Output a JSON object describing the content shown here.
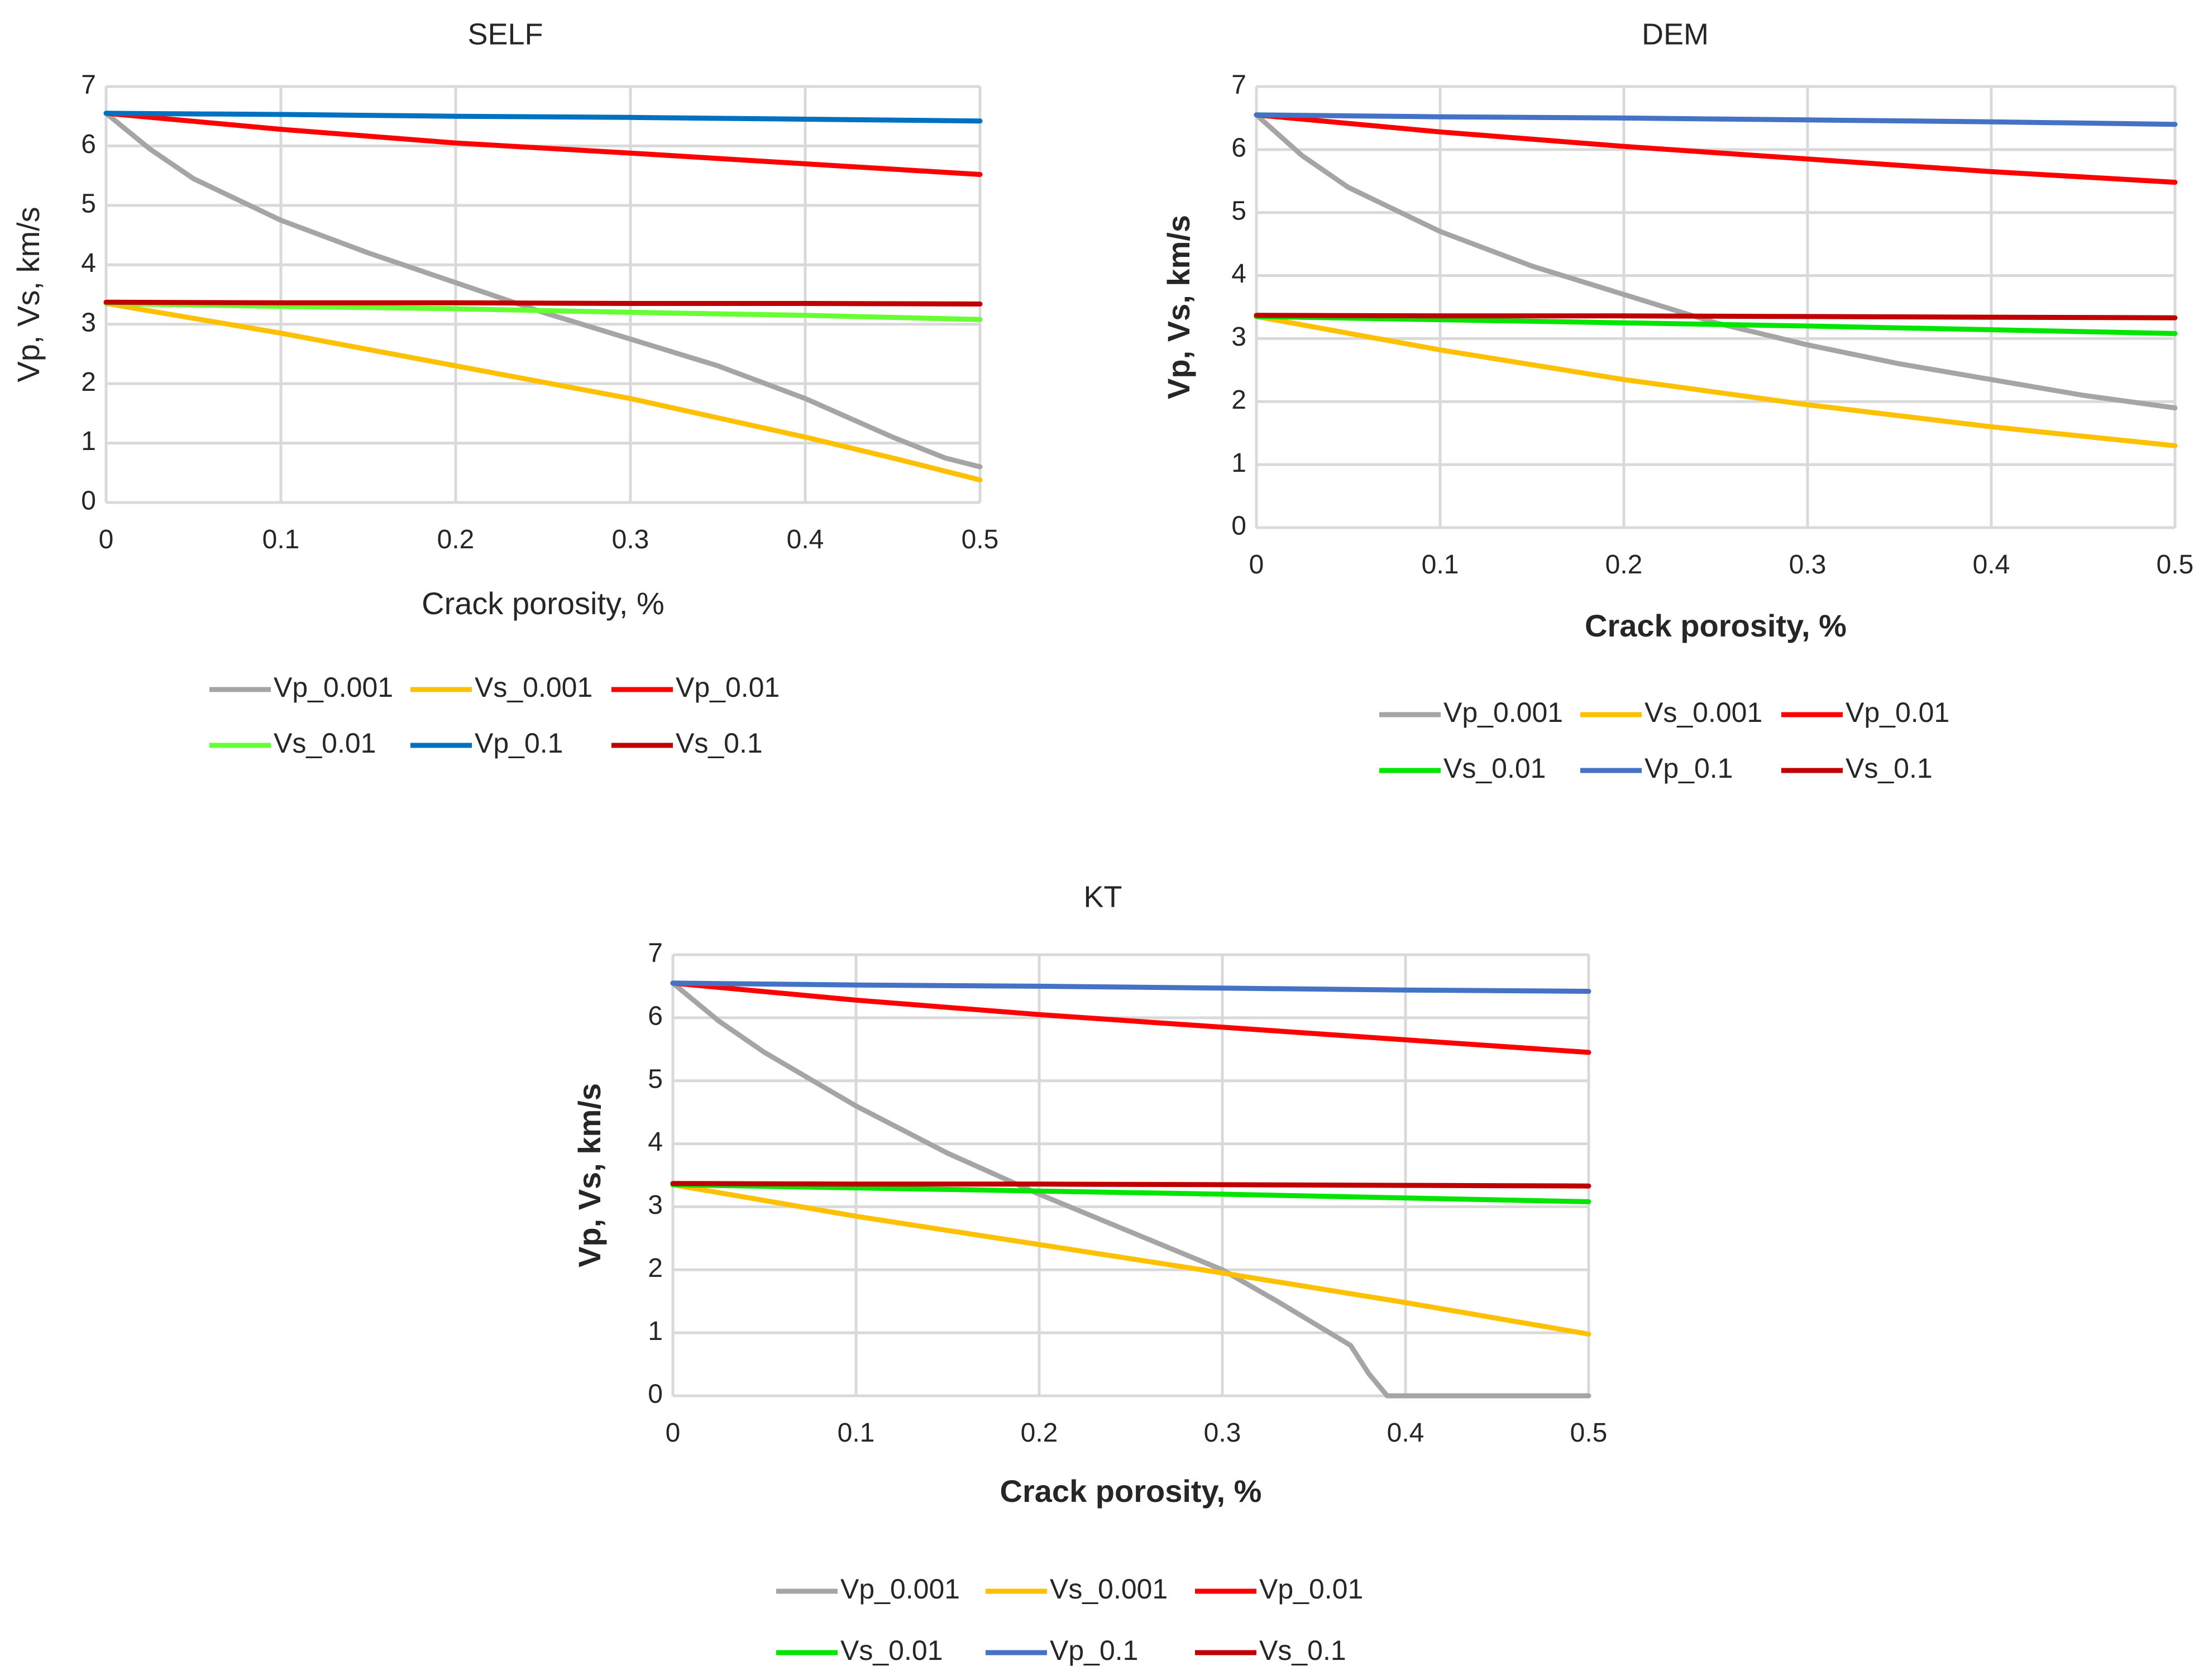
{
  "chart_data": [
    {
      "type": "line",
      "title": "SELF",
      "xlabel": "Crack porosity, %",
      "ylabel": "Vp, Vs, km/s",
      "xlim": [
        0,
        0.5
      ],
      "ylim": [
        0,
        7
      ],
      "x_ticks": [
        "0",
        "0.1",
        "0.2",
        "0.3",
        "0.4",
        "0.5"
      ],
      "y_ticks": [
        "0",
        "1",
        "2",
        "3",
        "4",
        "5",
        "6",
        "7"
      ],
      "grid": true,
      "legend_position": "bottom",
      "series": [
        {
          "name": "Vp_0.001",
          "color": "#a5a5a5",
          "x": [
            0,
            0.025,
            0.05,
            0.1,
            0.15,
            0.2,
            0.25,
            0.3,
            0.35,
            0.4,
            0.45,
            0.48,
            0.5
          ],
          "y": [
            6.55,
            5.95,
            5.45,
            4.75,
            4.2,
            3.7,
            3.2,
            2.75,
            2.3,
            1.75,
            1.1,
            0.75,
            0.6
          ]
        },
        {
          "name": "Vs_0.001",
          "color": "#ffc000",
          "x": [
            0,
            0.1,
            0.2,
            0.3,
            0.4,
            0.45,
            0.5
          ],
          "y": [
            3.35,
            2.85,
            2.3,
            1.75,
            1.1,
            0.75,
            0.38
          ]
        },
        {
          "name": "Vp_0.01",
          "color": "#ff0000",
          "x": [
            0,
            0.1,
            0.2,
            0.3,
            0.4,
            0.5
          ],
          "y": [
            6.55,
            6.28,
            6.05,
            5.88,
            5.7,
            5.52
          ]
        },
        {
          "name": "Vs_0.01",
          "color": "#66ff33",
          "x": [
            0,
            0.1,
            0.2,
            0.3,
            0.4,
            0.5
          ],
          "y": [
            3.35,
            3.3,
            3.26,
            3.2,
            3.15,
            3.08
          ]
        },
        {
          "name": "Vp_0.1",
          "color": "#0070c0",
          "x": [
            0,
            0.1,
            0.2,
            0.3,
            0.4,
            0.5
          ],
          "y": [
            6.55,
            6.53,
            6.5,
            6.48,
            6.45,
            6.42
          ]
        },
        {
          "name": "Vs_0.1",
          "color": "#c00000",
          "x": [
            0,
            0.1,
            0.2,
            0.3,
            0.4,
            0.5
          ],
          "y": [
            3.37,
            3.36,
            3.36,
            3.35,
            3.35,
            3.34
          ]
        }
      ]
    },
    {
      "type": "line",
      "title": "DEM",
      "xlabel": "Crack porosity, %",
      "ylabel": "Vp, Vs, km/s",
      "xlim": [
        0,
        0.5
      ],
      "ylim": [
        0,
        7
      ],
      "x_ticks": [
        "0",
        "0.1",
        "0.2",
        "0.3",
        "0.4",
        "0.5"
      ],
      "y_ticks": [
        "0",
        "1",
        "2",
        "3",
        "4",
        "5",
        "6",
        "7"
      ],
      "grid": true,
      "legend_position": "bottom",
      "series": [
        {
          "name": "Vp_0.001",
          "color": "#a5a5a5",
          "x": [
            0,
            0.025,
            0.05,
            0.1,
            0.15,
            0.2,
            0.25,
            0.3,
            0.35,
            0.4,
            0.45,
            0.5
          ],
          "y": [
            6.55,
            5.9,
            5.4,
            4.7,
            4.15,
            3.7,
            3.25,
            2.9,
            2.6,
            2.35,
            2.1,
            1.9
          ]
        },
        {
          "name": "Vs_0.001",
          "color": "#ffc000",
          "x": [
            0,
            0.1,
            0.2,
            0.3,
            0.4,
            0.5
          ],
          "y": [
            3.35,
            2.82,
            2.35,
            1.95,
            1.6,
            1.3
          ]
        },
        {
          "name": "Vp_0.01",
          "color": "#ff0000",
          "x": [
            0,
            0.1,
            0.2,
            0.3,
            0.4,
            0.5
          ],
          "y": [
            6.55,
            6.28,
            6.05,
            5.85,
            5.65,
            5.48
          ]
        },
        {
          "name": "Vs_0.01",
          "color": "#00e600",
          "x": [
            0,
            0.1,
            0.2,
            0.3,
            0.4,
            0.5
          ],
          "y": [
            3.35,
            3.3,
            3.25,
            3.2,
            3.14,
            3.08
          ]
        },
        {
          "name": "Vp_0.1",
          "color": "#4472c4",
          "x": [
            0,
            0.1,
            0.2,
            0.3,
            0.4,
            0.5
          ],
          "y": [
            6.55,
            6.52,
            6.5,
            6.47,
            6.44,
            6.4
          ]
        },
        {
          "name": "Vs_0.1",
          "color": "#c00000",
          "x": [
            0,
            0.1,
            0.2,
            0.3,
            0.4,
            0.5
          ],
          "y": [
            3.37,
            3.36,
            3.36,
            3.35,
            3.34,
            3.33
          ]
        }
      ]
    },
    {
      "type": "line",
      "title": "KT",
      "xlabel": "Crack porosity, %",
      "ylabel": "Vp, Vs, km/s",
      "xlim": [
        0,
        0.5
      ],
      "ylim": [
        0,
        7
      ],
      "x_ticks": [
        "0",
        "0.1",
        "0.2",
        "0.3",
        "0.4",
        "0.5"
      ],
      "y_ticks": [
        "0",
        "1",
        "2",
        "3",
        "4",
        "5",
        "6",
        "7"
      ],
      "grid": true,
      "legend_position": "bottom",
      "series": [
        {
          "name": "Vp_0.001",
          "color": "#a5a5a5",
          "x": [
            0,
            0.025,
            0.05,
            0.1,
            0.15,
            0.2,
            0.25,
            0.3,
            0.33,
            0.35,
            0.37,
            0.38,
            0.39,
            0.4,
            0.45,
            0.5
          ],
          "y": [
            6.55,
            5.95,
            5.45,
            4.6,
            3.85,
            3.2,
            2.6,
            2.0,
            1.5,
            1.15,
            0.8,
            0.35,
            0.0,
            0.0,
            0.0,
            0.0
          ]
        },
        {
          "name": "Vs_0.001",
          "color": "#ffc000",
          "x": [
            0,
            0.1,
            0.2,
            0.3,
            0.4,
            0.5
          ],
          "y": [
            3.35,
            2.85,
            2.4,
            1.95,
            1.48,
            0.98
          ]
        },
        {
          "name": "Vp_0.01",
          "color": "#ff0000",
          "x": [
            0,
            0.1,
            0.2,
            0.3,
            0.4,
            0.5
          ],
          "y": [
            6.55,
            6.28,
            6.05,
            5.85,
            5.65,
            5.45
          ]
        },
        {
          "name": "Vs_0.01",
          "color": "#00e600",
          "x": [
            0,
            0.1,
            0.2,
            0.3,
            0.4,
            0.5
          ],
          "y": [
            3.35,
            3.3,
            3.25,
            3.2,
            3.14,
            3.08
          ]
        },
        {
          "name": "Vp_0.1",
          "color": "#4472c4",
          "x": [
            0,
            0.1,
            0.2,
            0.3,
            0.4,
            0.5
          ],
          "y": [
            6.55,
            6.52,
            6.5,
            6.47,
            6.44,
            6.42
          ]
        },
        {
          "name": "Vs_0.1",
          "color": "#c00000",
          "x": [
            0,
            0.1,
            0.2,
            0.3,
            0.4,
            0.5
          ],
          "y": [
            3.37,
            3.36,
            3.36,
            3.35,
            3.34,
            3.33
          ]
        }
      ]
    }
  ]
}
